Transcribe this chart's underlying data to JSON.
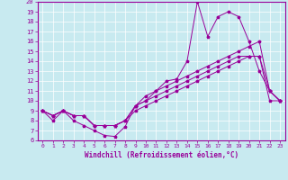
{
  "xlabel": "Windchill (Refroidissement éolien,°C)",
  "bg_color": "#c8eaf0",
  "line_color": "#990099",
  "grid_color": "#ffffff",
  "xlim": [
    -0.5,
    23.5
  ],
  "ylim": [
    6,
    20
  ],
  "xticks": [
    0,
    1,
    2,
    3,
    4,
    5,
    6,
    7,
    8,
    9,
    10,
    11,
    12,
    13,
    14,
    15,
    16,
    17,
    18,
    19,
    20,
    21,
    22,
    23
  ],
  "yticks": [
    6,
    7,
    8,
    9,
    10,
    11,
    12,
    13,
    14,
    15,
    16,
    17,
    18,
    19,
    20
  ],
  "line1_x": [
    0,
    1,
    2,
    3,
    4,
    5,
    6,
    7,
    8,
    9,
    10,
    11,
    12,
    13,
    14,
    15,
    16,
    17,
    18,
    19,
    20,
    21,
    22,
    23
  ],
  "line1_y": [
    9,
    8,
    9,
    8,
    7.5,
    7,
    6.5,
    6.4,
    7.4,
    9.5,
    10,
    11,
    12,
    12.2,
    14,
    20,
    16.5,
    18.5,
    19,
    18.5,
    16,
    13,
    11,
    10
  ],
  "line2_x": [
    0,
    1,
    2,
    3,
    4,
    5,
    6,
    7,
    8,
    9,
    10,
    11,
    12,
    13,
    14,
    15,
    16,
    17,
    18,
    19,
    20,
    21,
    22,
    23
  ],
  "line2_y": [
    9,
    8.5,
    9,
    8.5,
    8.5,
    7.5,
    7.5,
    7.5,
    8.0,
    9.5,
    10.5,
    11,
    11.5,
    12,
    12.5,
    13,
    13.5,
    14,
    14.5,
    15,
    15.5,
    16,
    11,
    10
  ],
  "line3_x": [
    0,
    1,
    2,
    3,
    4,
    5,
    6,
    7,
    8,
    9,
    10,
    11,
    12,
    13,
    14,
    15,
    16,
    17,
    18,
    19,
    20,
    21,
    22,
    23
  ],
  "line3_y": [
    9,
    8.5,
    9,
    8.5,
    8.5,
    7.5,
    7.5,
    7.5,
    8.0,
    9.5,
    10,
    10.5,
    11,
    11.5,
    12,
    12.5,
    13,
    13.5,
    14,
    14.5,
    14.5,
    14.5,
    11,
    10
  ],
  "line4_x": [
    0,
    1,
    2,
    3,
    4,
    5,
    6,
    7,
    8,
    9,
    10,
    11,
    12,
    13,
    14,
    15,
    16,
    17,
    18,
    19,
    20,
    21,
    22,
    23
  ],
  "line4_y": [
    9,
    8.5,
    9,
    8.5,
    8.5,
    7.5,
    7.5,
    7.5,
    8.0,
    9,
    9.5,
    10,
    10.5,
    11,
    11.5,
    12,
    12.5,
    13,
    13.5,
    14,
    14.5,
    14.5,
    10,
    10
  ]
}
